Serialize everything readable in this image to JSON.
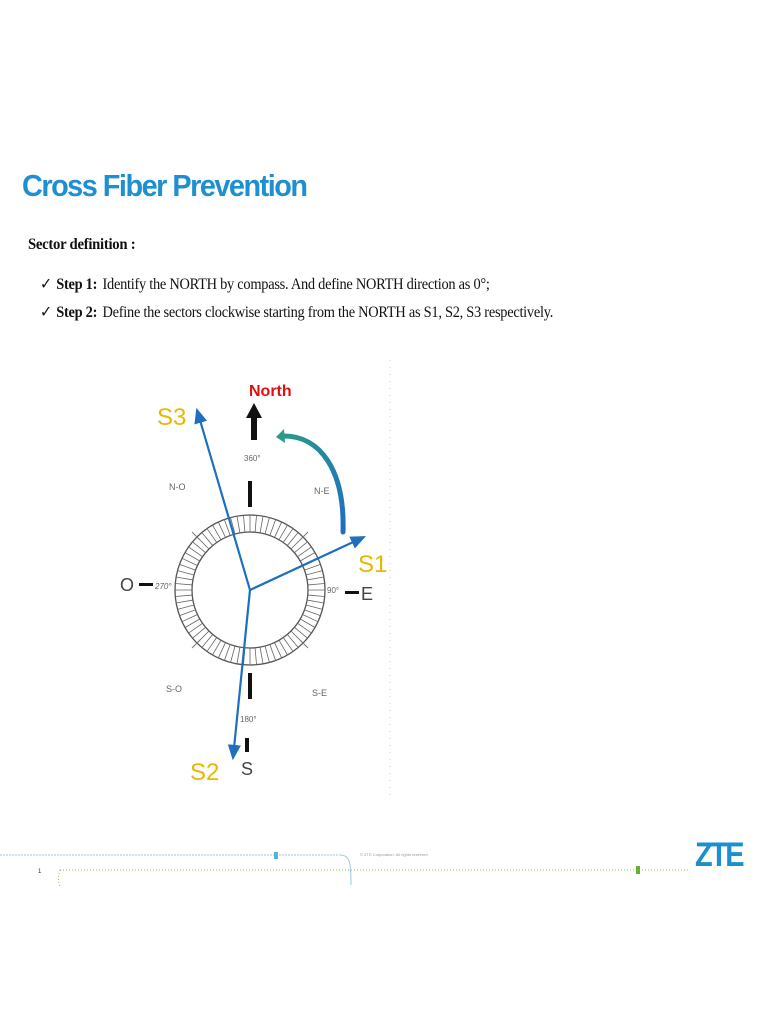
{
  "slide": {
    "title": "Cross Fiber Prevention",
    "subheading": "Sector definition :",
    "steps": [
      {
        "check": "✓",
        "label": "Step 1:",
        "text": "Identify the NORTH by compass. And define NORTH direction as 0°;"
      },
      {
        "check": "✓",
        "label": "Step 2:",
        "text": "Define the sectors clockwise starting from the NORTH as S1, S2, S3 respectively."
      }
    ]
  },
  "diagram": {
    "north_label": "North",
    "sectors": {
      "s1": "S1",
      "s2": "S2",
      "s3": "S3"
    },
    "cardinal": {
      "east": "E",
      "west": "O",
      "south": "S"
    },
    "intercardinal": {
      "ne": "N-E",
      "nw": "N-O",
      "se": "S-E",
      "sw": "S-O"
    },
    "degrees": {
      "d0": "360°",
      "d90": "90°",
      "d180": "180°",
      "d270": "270°"
    },
    "colors": {
      "sector_label": "#e8b800",
      "north_label": "#e01010",
      "arrow": "#1e6fc0"
    }
  },
  "footer": {
    "copyright": "© ZTE Corporation. All rights reserved",
    "logo": "ZTE",
    "page_number": "1"
  }
}
